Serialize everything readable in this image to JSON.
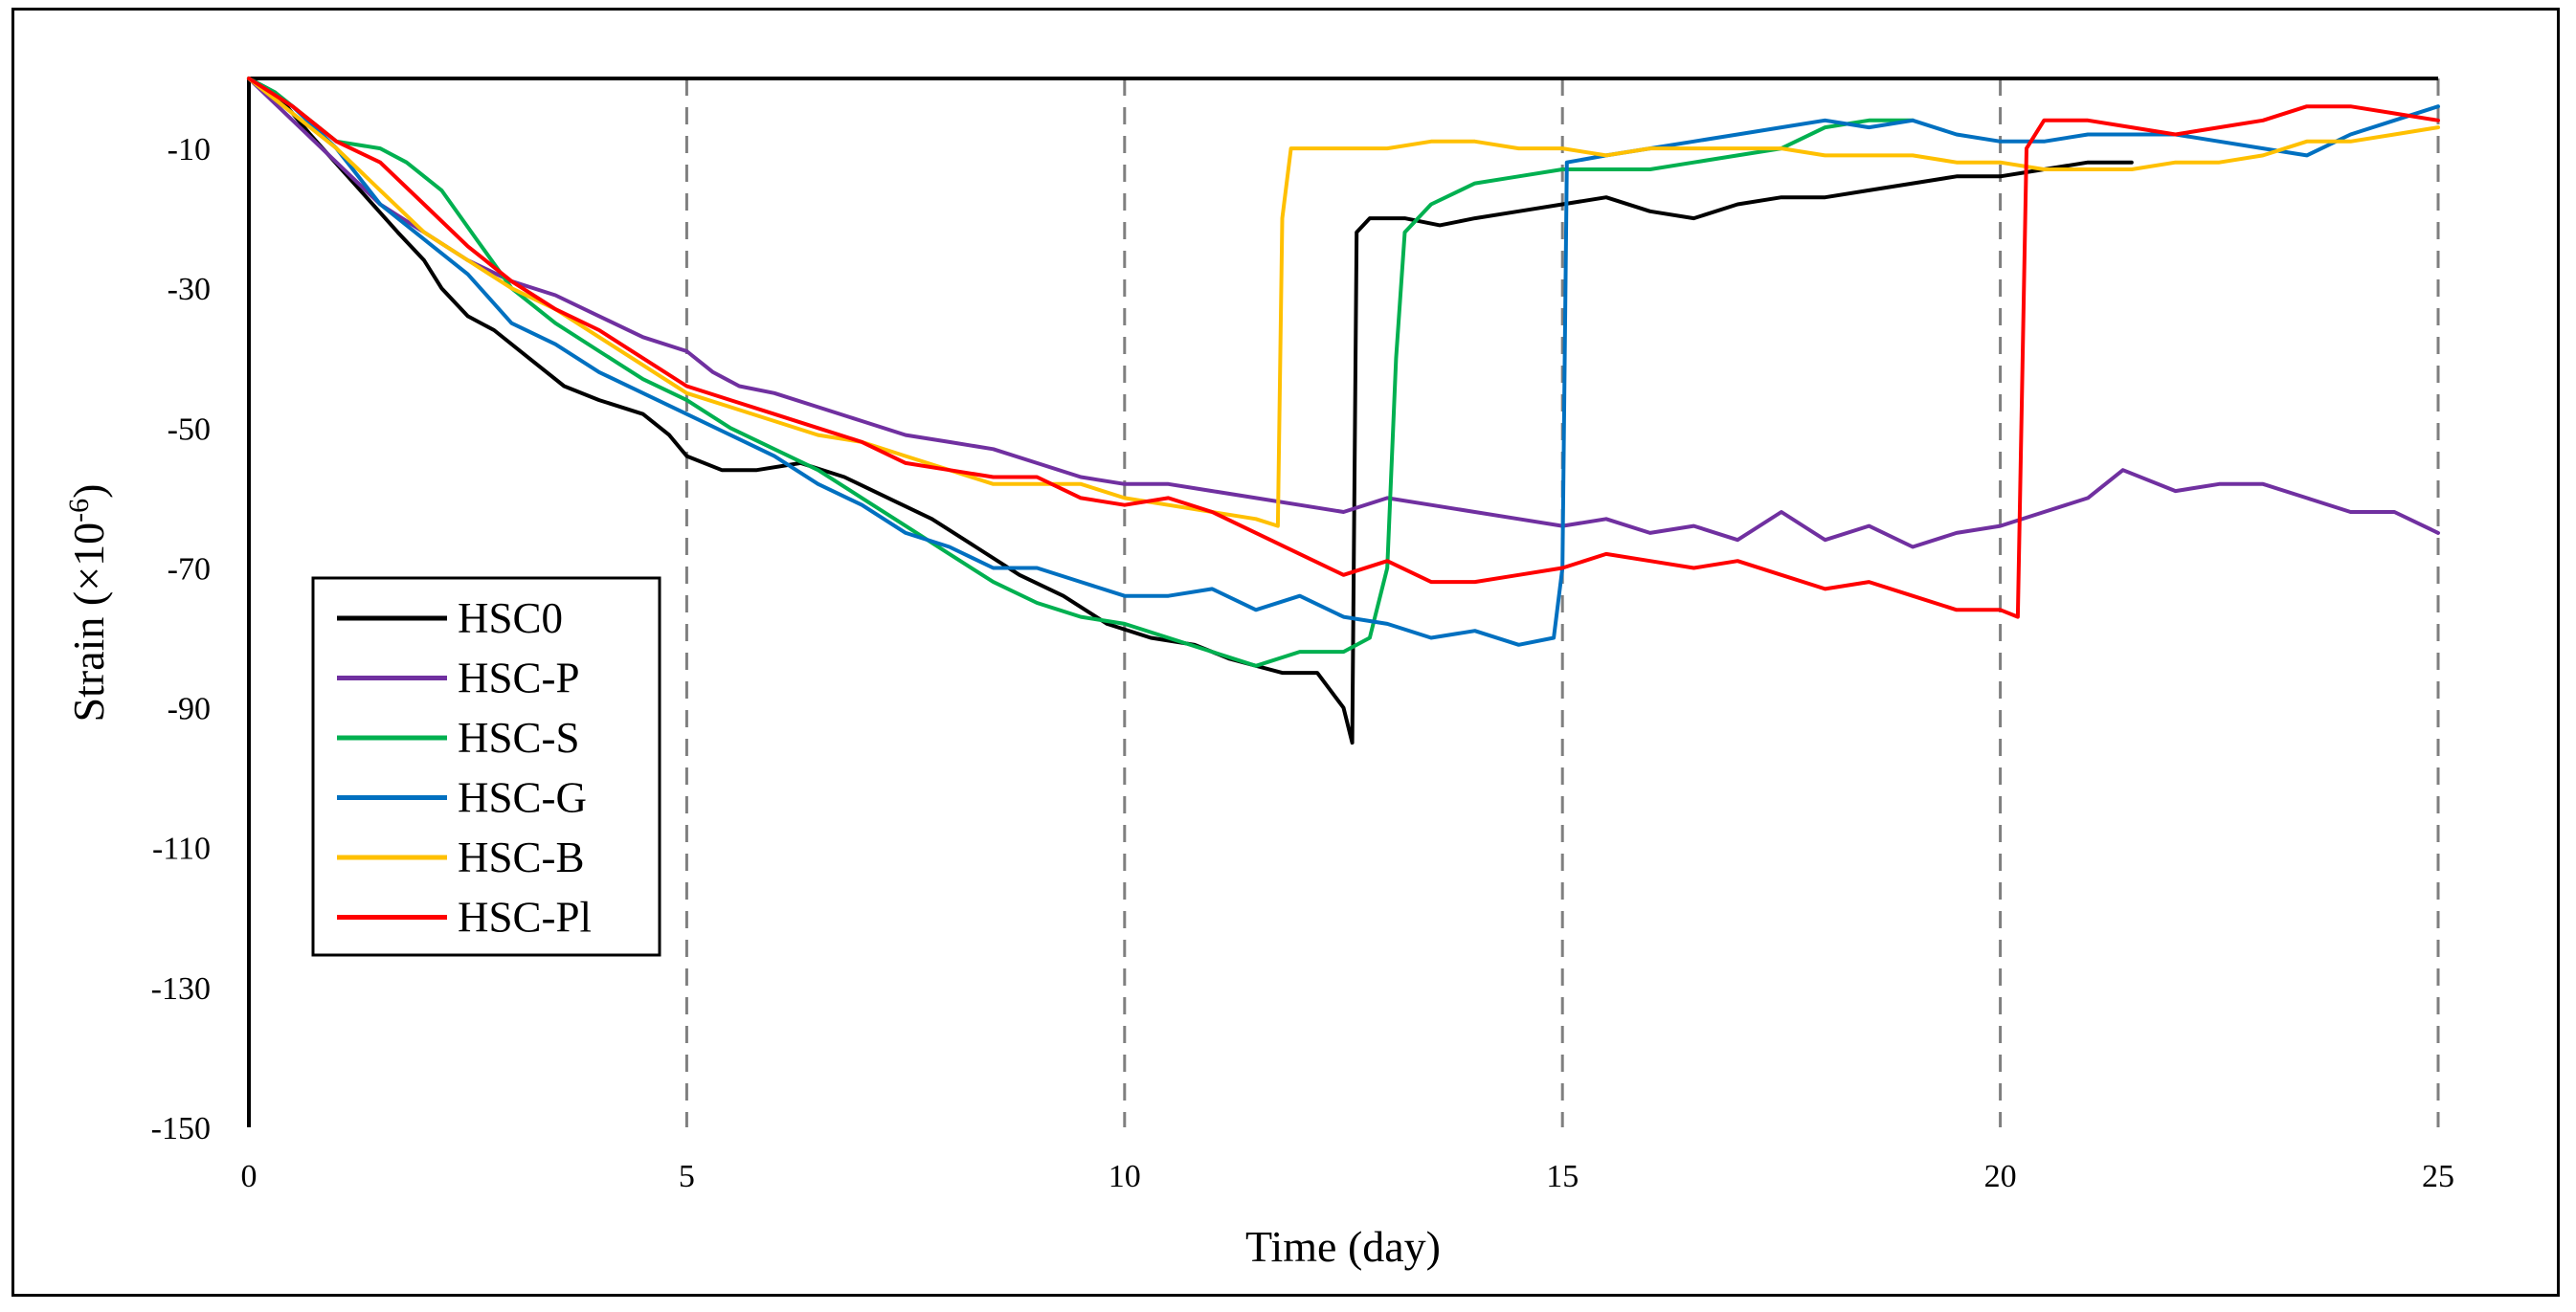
{
  "chart_data": {
    "type": "line",
    "title": "",
    "xlabel": "Time (day)",
    "ylabel_main": "Strain (×10",
    "ylabel_sup": "-6",
    "ylabel_close": ")",
    "xlim": [
      0,
      25
    ],
    "ylim": [
      -150,
      0
    ],
    "x_ticks": [
      0,
      5,
      10,
      15,
      20,
      25
    ],
    "y_ticks": [
      -10,
      -30,
      -50,
      -70,
      -90,
      -110,
      -130,
      -150
    ],
    "vertical_gridlines_dashed": [
      5,
      10,
      15,
      20,
      25
    ],
    "legend_position": "left-bottom",
    "series": [
      {
        "name": "HSC0",
        "color": "#000000",
        "points": [
          [
            0,
            0
          ],
          [
            0.3,
            -2
          ],
          [
            0.7,
            -8
          ],
          [
            1.2,
            -15
          ],
          [
            1.7,
            -22
          ],
          [
            2.0,
            -26
          ],
          [
            2.2,
            -30
          ],
          [
            2.5,
            -34
          ],
          [
            2.8,
            -36
          ],
          [
            3.2,
            -40
          ],
          [
            3.6,
            -44
          ],
          [
            4.0,
            -46
          ],
          [
            4.5,
            -48
          ],
          [
            4.8,
            -51
          ],
          [
            5.0,
            -54
          ],
          [
            5.4,
            -56
          ],
          [
            5.8,
            -56
          ],
          [
            6.3,
            -55
          ],
          [
            6.8,
            -57
          ],
          [
            7.3,
            -60
          ],
          [
            7.8,
            -63
          ],
          [
            8.3,
            -67
          ],
          [
            8.8,
            -71
          ],
          [
            9.3,
            -74
          ],
          [
            9.8,
            -78
          ],
          [
            10.3,
            -80
          ],
          [
            10.8,
            -81
          ],
          [
            11.2,
            -83
          ],
          [
            11.8,
            -85
          ],
          [
            12.2,
            -85
          ],
          [
            12.5,
            -90
          ],
          [
            12.6,
            -95
          ],
          [
            12.65,
            -22
          ],
          [
            12.8,
            -20
          ],
          [
            13.2,
            -20
          ],
          [
            13.6,
            -21
          ],
          [
            14.0,
            -20
          ],
          [
            14.5,
            -19
          ],
          [
            15.0,
            -18
          ],
          [
            15.5,
            -17
          ],
          [
            16.0,
            -19
          ],
          [
            16.5,
            -20
          ],
          [
            17.0,
            -18
          ],
          [
            17.5,
            -17
          ],
          [
            18.0,
            -17
          ],
          [
            18.5,
            -16
          ],
          [
            19.0,
            -15
          ],
          [
            19.5,
            -14
          ],
          [
            20.0,
            -14
          ],
          [
            20.5,
            -13
          ],
          [
            21.0,
            -12
          ],
          [
            21.5,
            -12
          ]
        ]
      },
      {
        "name": "HSC-P",
        "color": "#7030A0",
        "points": [
          [
            0,
            0
          ],
          [
            0.5,
            -6
          ],
          [
            1.0,
            -12
          ],
          [
            1.5,
            -18
          ],
          [
            2.0,
            -22
          ],
          [
            2.5,
            -26
          ],
          [
            3.0,
            -29
          ],
          [
            3.5,
            -31
          ],
          [
            4.0,
            -34
          ],
          [
            4.5,
            -37
          ],
          [
            5.0,
            -39
          ],
          [
            5.3,
            -42
          ],
          [
            5.6,
            -44
          ],
          [
            6.0,
            -45
          ],
          [
            6.5,
            -47
          ],
          [
            7.0,
            -49
          ],
          [
            7.5,
            -51
          ],
          [
            8.0,
            -52
          ],
          [
            8.5,
            -53
          ],
          [
            9.0,
            -55
          ],
          [
            9.5,
            -57
          ],
          [
            10.0,
            -58
          ],
          [
            10.5,
            -58
          ],
          [
            11.0,
            -59
          ],
          [
            11.5,
            -60
          ],
          [
            12.0,
            -61
          ],
          [
            12.5,
            -62
          ],
          [
            13.0,
            -60
          ],
          [
            13.5,
            -61
          ],
          [
            14.0,
            -62
          ],
          [
            14.5,
            -63
          ],
          [
            15.0,
            -64
          ],
          [
            15.5,
            -63
          ],
          [
            16.0,
            -65
          ],
          [
            16.5,
            -64
          ],
          [
            17.0,
            -66
          ],
          [
            17.5,
            -62
          ],
          [
            18.0,
            -66
          ],
          [
            18.5,
            -64
          ],
          [
            19.0,
            -67
          ],
          [
            19.5,
            -65
          ],
          [
            20.0,
            -64
          ],
          [
            20.5,
            -62
          ],
          [
            21.0,
            -60
          ],
          [
            21.4,
            -56
          ],
          [
            22.0,
            -59
          ],
          [
            22.5,
            -58
          ],
          [
            23.0,
            -58
          ],
          [
            23.5,
            -60
          ],
          [
            24.0,
            -62
          ],
          [
            24.5,
            -62
          ],
          [
            25.0,
            -65
          ]
        ]
      },
      {
        "name": "HSC-S",
        "color": "#00B050",
        "points": [
          [
            0,
            0
          ],
          [
            0.3,
            -2
          ],
          [
            0.7,
            -6
          ],
          [
            1.0,
            -9
          ],
          [
            1.5,
            -10
          ],
          [
            1.8,
            -12
          ],
          [
            2.2,
            -16
          ],
          [
            2.6,
            -23
          ],
          [
            3.0,
            -30
          ],
          [
            3.5,
            -35
          ],
          [
            4.0,
            -39
          ],
          [
            4.5,
            -43
          ],
          [
            5.0,
            -46
          ],
          [
            5.5,
            -50
          ],
          [
            6.0,
            -53
          ],
          [
            6.5,
            -56
          ],
          [
            7.0,
            -60
          ],
          [
            7.5,
            -64
          ],
          [
            8.0,
            -68
          ],
          [
            8.5,
            -72
          ],
          [
            9.0,
            -75
          ],
          [
            9.5,
            -77
          ],
          [
            10.0,
            -78
          ],
          [
            10.5,
            -80
          ],
          [
            11.0,
            -82
          ],
          [
            11.5,
            -84
          ],
          [
            12.0,
            -82
          ],
          [
            12.5,
            -82
          ],
          [
            12.8,
            -80
          ],
          [
            13.0,
            -70
          ],
          [
            13.1,
            -40
          ],
          [
            13.2,
            -22
          ],
          [
            13.5,
            -18
          ],
          [
            14.0,
            -15
          ],
          [
            14.5,
            -14
          ],
          [
            15.0,
            -13
          ],
          [
            15.5,
            -13
          ],
          [
            16.0,
            -13
          ],
          [
            16.5,
            -12
          ],
          [
            17.0,
            -11
          ],
          [
            17.5,
            -10
          ],
          [
            18.0,
            -7
          ],
          [
            18.5,
            -6
          ],
          [
            19.0,
            -6
          ]
        ]
      },
      {
        "name": "HSC-G",
        "color": "#0070C0",
        "points": [
          [
            0,
            0
          ],
          [
            0.5,
            -4
          ],
          [
            1.0,
            -10
          ],
          [
            1.5,
            -18
          ],
          [
            2.0,
            -23
          ],
          [
            2.5,
            -28
          ],
          [
            3.0,
            -35
          ],
          [
            3.5,
            -38
          ],
          [
            4.0,
            -42
          ],
          [
            4.5,
            -45
          ],
          [
            5.0,
            -48
          ],
          [
            5.5,
            -51
          ],
          [
            6.0,
            -54
          ],
          [
            6.5,
            -58
          ],
          [
            7.0,
            -61
          ],
          [
            7.5,
            -65
          ],
          [
            8.0,
            -67
          ],
          [
            8.5,
            -70
          ],
          [
            9.0,
            -70
          ],
          [
            9.5,
            -72
          ],
          [
            10.0,
            -74
          ],
          [
            10.5,
            -74
          ],
          [
            11.0,
            -73
          ],
          [
            11.5,
            -76
          ],
          [
            12.0,
            -74
          ],
          [
            12.5,
            -77
          ],
          [
            13.0,
            -78
          ],
          [
            13.5,
            -80
          ],
          [
            14.0,
            -79
          ],
          [
            14.5,
            -81
          ],
          [
            14.9,
            -80
          ],
          [
            15.0,
            -70
          ],
          [
            15.05,
            -12
          ],
          [
            15.5,
            -11
          ],
          [
            16.0,
            -10
          ],
          [
            16.5,
            -9
          ],
          [
            17.0,
            -8
          ],
          [
            17.5,
            -7
          ],
          [
            18.0,
            -6
          ],
          [
            18.5,
            -7
          ],
          [
            19.0,
            -6
          ],
          [
            19.5,
            -8
          ],
          [
            20.0,
            -9
          ],
          [
            20.5,
            -9
          ],
          [
            21.0,
            -8
          ],
          [
            21.5,
            -8
          ],
          [
            22.0,
            -8
          ],
          [
            22.5,
            -9
          ],
          [
            23.0,
            -10
          ],
          [
            23.5,
            -11
          ],
          [
            24.0,
            -8
          ],
          [
            24.5,
            -6
          ],
          [
            25.0,
            -4
          ]
        ]
      },
      {
        "name": "HSC-B",
        "color": "#FFC000",
        "points": [
          [
            0,
            0
          ],
          [
            0.5,
            -5
          ],
          [
            1.0,
            -10
          ],
          [
            1.5,
            -16
          ],
          [
            2.0,
            -22
          ],
          [
            2.5,
            -26
          ],
          [
            3.0,
            -30
          ],
          [
            3.5,
            -33
          ],
          [
            4.0,
            -37
          ],
          [
            4.5,
            -41
          ],
          [
            5.0,
            -45
          ],
          [
            5.5,
            -47
          ],
          [
            6.0,
            -49
          ],
          [
            6.5,
            -51
          ],
          [
            7.0,
            -52
          ],
          [
            7.5,
            -54
          ],
          [
            8.0,
            -56
          ],
          [
            8.5,
            -58
          ],
          [
            9.0,
            -58
          ],
          [
            9.5,
            -58
          ],
          [
            10.0,
            -60
          ],
          [
            10.5,
            -61
          ],
          [
            11.0,
            -62
          ],
          [
            11.5,
            -63
          ],
          [
            11.75,
            -64
          ],
          [
            11.8,
            -20
          ],
          [
            11.9,
            -10
          ],
          [
            12.5,
            -10
          ],
          [
            13.0,
            -10
          ],
          [
            13.5,
            -9
          ],
          [
            14.0,
            -9
          ],
          [
            14.5,
            -10
          ],
          [
            15.0,
            -10
          ],
          [
            15.5,
            -11
          ],
          [
            16.0,
            -10
          ],
          [
            16.5,
            -10
          ],
          [
            17.0,
            -10
          ],
          [
            17.5,
            -10
          ],
          [
            18.0,
            -11
          ],
          [
            18.5,
            -11
          ],
          [
            19.0,
            -11
          ],
          [
            19.5,
            -12
          ],
          [
            20.0,
            -12
          ],
          [
            20.5,
            -13
          ],
          [
            21.0,
            -13
          ],
          [
            21.5,
            -13
          ],
          [
            22.0,
            -12
          ],
          [
            22.5,
            -12
          ],
          [
            23.0,
            -11
          ],
          [
            23.5,
            -9
          ],
          [
            24.0,
            -9
          ],
          [
            24.5,
            -8
          ],
          [
            25.0,
            -7
          ]
        ]
      },
      {
        "name": "HSC-Pl",
        "color": "#FF0000",
        "points": [
          [
            0,
            0
          ],
          [
            0.5,
            -4
          ],
          [
            1.0,
            -9
          ],
          [
            1.5,
            -12
          ],
          [
            2.0,
            -18
          ],
          [
            2.5,
            -24
          ],
          [
            3.0,
            -29
          ],
          [
            3.5,
            -33
          ],
          [
            4.0,
            -36
          ],
          [
            4.5,
            -40
          ],
          [
            5.0,
            -44
          ],
          [
            5.5,
            -46
          ],
          [
            6.0,
            -48
          ],
          [
            6.5,
            -50
          ],
          [
            7.0,
            -52
          ],
          [
            7.5,
            -55
          ],
          [
            8.0,
            -56
          ],
          [
            8.5,
            -57
          ],
          [
            9.0,
            -57
          ],
          [
            9.5,
            -60
          ],
          [
            10.0,
            -61
          ],
          [
            10.5,
            -60
          ],
          [
            11.0,
            -62
          ],
          [
            11.5,
            -65
          ],
          [
            12.0,
            -68
          ],
          [
            12.5,
            -71
          ],
          [
            13.0,
            -69
          ],
          [
            13.5,
            -72
          ],
          [
            14.0,
            -72
          ],
          [
            14.5,
            -71
          ],
          [
            15.0,
            -70
          ],
          [
            15.5,
            -68
          ],
          [
            16.0,
            -69
          ],
          [
            16.5,
            -70
          ],
          [
            17.0,
            -69
          ],
          [
            17.5,
            -71
          ],
          [
            18.0,
            -73
          ],
          [
            18.5,
            -72
          ],
          [
            19.0,
            -74
          ],
          [
            19.5,
            -76
          ],
          [
            20.0,
            -76
          ],
          [
            20.2,
            -77
          ],
          [
            20.3,
            -10
          ],
          [
            20.5,
            -6
          ],
          [
            21.0,
            -6
          ],
          [
            21.5,
            -7
          ],
          [
            22.0,
            -8
          ],
          [
            22.5,
            -7
          ],
          [
            23.0,
            -6
          ],
          [
            23.5,
            -4
          ],
          [
            24.0,
            -4
          ],
          [
            24.5,
            -5
          ],
          [
            25.0,
            -6
          ]
        ]
      }
    ]
  }
}
